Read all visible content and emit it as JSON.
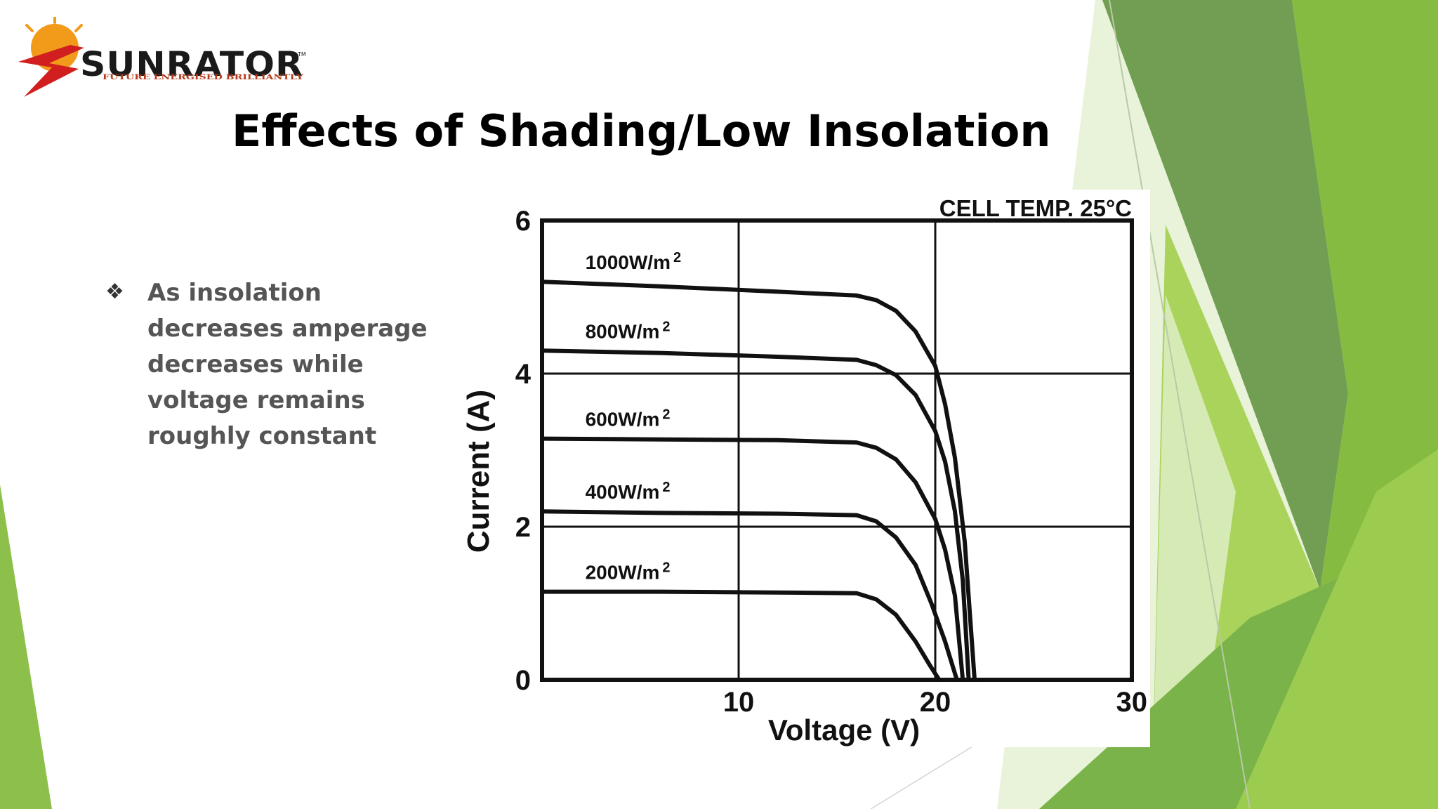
{
  "logo": {
    "name": "SUNRATOR",
    "tagline": "FUTURE ENERGISED BRILLIANTLY",
    "trademark": "TM",
    "colors": {
      "brand_red": "#d11f1f",
      "brand_orange": "#f29a1a",
      "brand_black": "#1a1a1a"
    }
  },
  "slide": {
    "title": "Effects of Shading/Low Insolation",
    "bullet_icon": "diamond-cluster-icon",
    "bullet": "As insolation decreases amperage decreases while voltage remains roughly constant"
  },
  "theme_colors": {
    "green_dark": "#6a9a4a",
    "green_mid": "#7fb34a",
    "green_light": "#a7cf5f",
    "green_pale": "#dcedc1"
  },
  "chart_data": {
    "type": "line",
    "title": "",
    "annotation": "CELL TEMP. 25°C",
    "xlabel": "Voltage (V)",
    "ylabel": "Current (A)",
    "xlim": [
      0,
      30
    ],
    "ylim": [
      0,
      6
    ],
    "xticks": [
      "10",
      "20",
      "30"
    ],
    "yticks": [
      "0",
      "2",
      "4",
      "6"
    ],
    "grid": true,
    "series": [
      {
        "name": "1000W/m²",
        "label_base": "1000W/m",
        "label_sup": "2",
        "points": [
          [
            0,
            5.2
          ],
          [
            6,
            5.14
          ],
          [
            12,
            5.07
          ],
          [
            16,
            5.02
          ],
          [
            17,
            4.96
          ],
          [
            18,
            4.82
          ],
          [
            19,
            4.55
          ],
          [
            20,
            4.1
          ],
          [
            20.5,
            3.6
          ],
          [
            21,
            2.9
          ],
          [
            21.5,
            1.8
          ],
          [
            22,
            0
          ]
        ]
      },
      {
        "name": "800W/m²",
        "label_base": "800W/m",
        "label_sup": "2",
        "points": [
          [
            0,
            4.3
          ],
          [
            6,
            4.27
          ],
          [
            12,
            4.22
          ],
          [
            16,
            4.18
          ],
          [
            17,
            4.11
          ],
          [
            18,
            3.98
          ],
          [
            19,
            3.72
          ],
          [
            20,
            3.25
          ],
          [
            20.5,
            2.85
          ],
          [
            21,
            2.2
          ],
          [
            21.4,
            1.3
          ],
          [
            21.7,
            0
          ]
        ]
      },
      {
        "name": "600W/m²",
        "label_base": "600W/m",
        "label_sup": "2",
        "points": [
          [
            0,
            3.15
          ],
          [
            6,
            3.14
          ],
          [
            12,
            3.13
          ],
          [
            16,
            3.1
          ],
          [
            17,
            3.03
          ],
          [
            18,
            2.88
          ],
          [
            19,
            2.58
          ],
          [
            20,
            2.1
          ],
          [
            20.5,
            1.7
          ],
          [
            21,
            1.1
          ],
          [
            21.4,
            0
          ]
        ]
      },
      {
        "name": "400W/m²",
        "label_base": "400W/m",
        "label_sup": "2",
        "points": [
          [
            0,
            2.2
          ],
          [
            6,
            2.18
          ],
          [
            12,
            2.17
          ],
          [
            16,
            2.15
          ],
          [
            17,
            2.07
          ],
          [
            18,
            1.86
          ],
          [
            19,
            1.5
          ],
          [
            19.8,
            1.0
          ],
          [
            20.5,
            0.5
          ],
          [
            21.1,
            0
          ]
        ]
      },
      {
        "name": "200W/m²",
        "label_base": "200W/m",
        "label_sup": "2",
        "points": [
          [
            0,
            1.15
          ],
          [
            6,
            1.15
          ],
          [
            12,
            1.14
          ],
          [
            16,
            1.13
          ],
          [
            17,
            1.05
          ],
          [
            18,
            0.85
          ],
          [
            19,
            0.5
          ],
          [
            19.7,
            0.2
          ],
          [
            20.2,
            0
          ]
        ]
      }
    ]
  }
}
